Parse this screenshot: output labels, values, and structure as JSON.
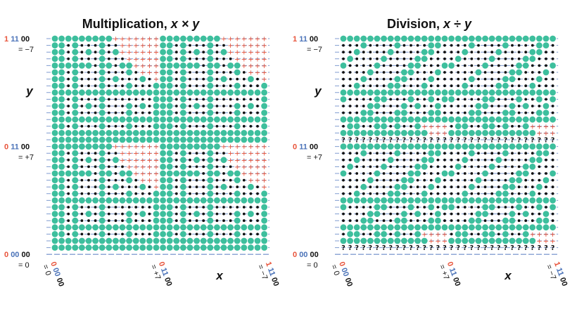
{
  "panels": [
    {
      "title_prefix": "Multiplication, ",
      "title_expr": "x × y",
      "op": "mul",
      "y_axis_label": "y",
      "x_axis_label": "x",
      "y_labels": [
        {
          "bits": [
            {
              "t": "1 ",
              "c": "red"
            },
            {
              "t": "11",
              "c": "blue"
            },
            {
              "t": " 00",
              "c": "black"
            }
          ],
          "eq": "= −7"
        },
        {
          "bits": [
            {
              "t": "0 ",
              "c": "red"
            },
            {
              "t": "11",
              "c": "blue"
            },
            {
              "t": " 00",
              "c": "black"
            }
          ],
          "eq": "= +7"
        },
        {
          "bits": [
            {
              "t": "0 ",
              "c": "red"
            },
            {
              "t": "00",
              "c": "blue"
            },
            {
              "t": " 00",
              "c": "black"
            }
          ],
          "eq": "= 0"
        }
      ],
      "x_labels": [
        {
          "bits": [
            {
              "t": "0 ",
              "c": "red"
            },
            {
              "t": "00",
              "c": "blue"
            },
            {
              "t": " 00",
              "c": "black"
            }
          ],
          "eq": "= 0"
        },
        {
          "bits": [
            {
              "t": "0 ",
              "c": "red"
            },
            {
              "t": "11",
              "c": "blue"
            },
            {
              "t": " 00",
              "c": "black"
            }
          ],
          "eq": "= +7"
        },
        {
          "bits": [
            {
              "t": "1 ",
              "c": "red"
            },
            {
              "t": "11",
              "c": "blue"
            },
            {
              "t": " 00",
              "c": "black"
            }
          ],
          "eq": "= −7"
        }
      ]
    },
    {
      "title_prefix": "Division, ",
      "title_expr": "x ÷ y",
      "op": "div",
      "y_axis_label": "y",
      "x_axis_label": "x",
      "y_labels": [
        {
          "bits": [
            {
              "t": "1 ",
              "c": "red"
            },
            {
              "t": "11",
              "c": "blue"
            },
            {
              "t": " 00",
              "c": "black"
            }
          ],
          "eq": "= −7"
        },
        {
          "bits": [
            {
              "t": "0 ",
              "c": "red"
            },
            {
              "t": "11",
              "c": "blue"
            },
            {
              "t": " 00",
              "c": "black"
            }
          ],
          "eq": "= +7"
        },
        {
          "bits": [
            {
              "t": "0 ",
              "c": "red"
            },
            {
              "t": "00",
              "c": "blue"
            },
            {
              "t": " 00",
              "c": "black"
            }
          ],
          "eq": "= 0"
        }
      ],
      "x_labels": [
        {
          "bits": [
            {
              "t": "0 ",
              "c": "red"
            },
            {
              "t": "00",
              "c": "blue"
            },
            {
              "t": " 00",
              "c": "black"
            }
          ],
          "eq": "= 0"
        },
        {
          "bits": [
            {
              "t": "0 ",
              "c": "red"
            },
            {
              "t": "11",
              "c": "blue"
            },
            {
              "t": " 00",
              "c": "black"
            }
          ],
          "eq": "= +7"
        },
        {
          "bits": [
            {
              "t": "1 ",
              "c": "red"
            },
            {
              "t": "11",
              "c": "blue"
            },
            {
              "t": " 00",
              "c": "black"
            }
          ],
          "eq": "= −7"
        }
      ]
    }
  ],
  "legend_symbols": {
    "teal_dot": "value exactly representable",
    "black_dot": "value rounded",
    "plus": "+",
    "question": "?"
  },
  "colors": {
    "teal": "#3dbf9d",
    "black": "#111111",
    "red": "#e8533a",
    "blue": "#4a72b8",
    "dash": "#6a8ac8"
  }
}
